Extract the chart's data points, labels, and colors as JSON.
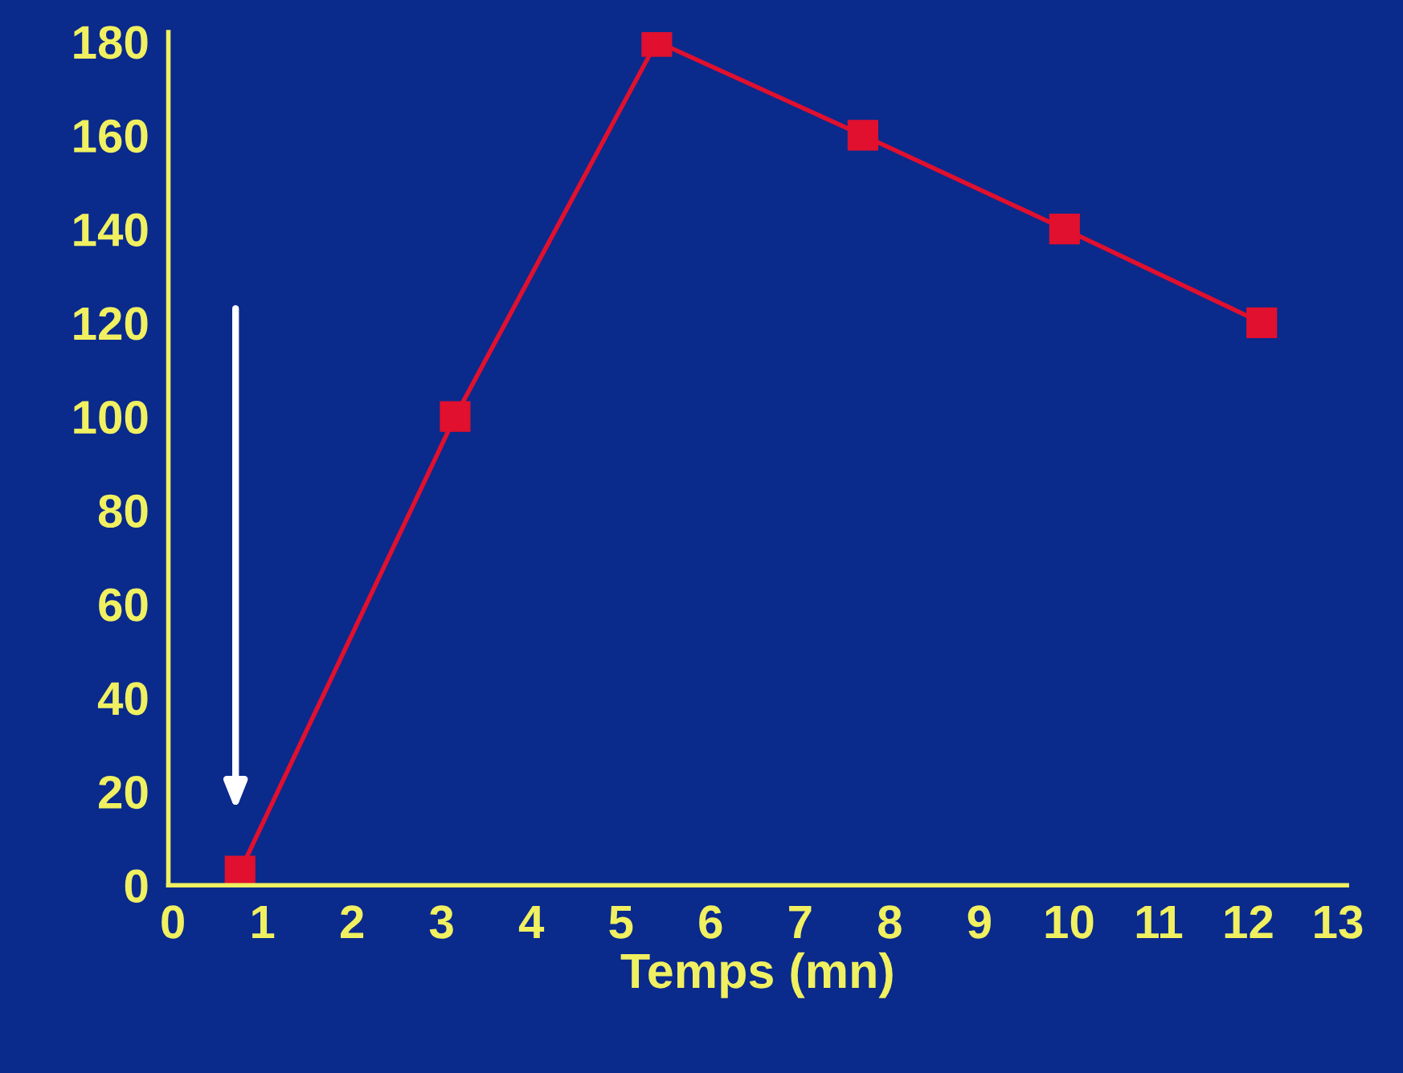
{
  "chart_data": {
    "type": "line",
    "xlabel": "Temps (mn)",
    "x": [
      0.75,
      3.15,
      5.4,
      7.7,
      9.95,
      12.15
    ],
    "series": [
      {
        "color": "#e0102e",
        "values": [
          3,
          100,
          180,
          160,
          140,
          120
        ]
      }
    ],
    "marker": "square",
    "line_style": "solid",
    "xlim": [
      -0.05,
      13.1
    ],
    "ylim": [
      0,
      182
    ],
    "xticks": [
      0,
      1,
      2,
      3,
      4,
      5,
      6,
      7,
      8,
      9,
      10,
      11,
      12,
      13
    ],
    "yticks": [
      0,
      20,
      40,
      60,
      80,
      100,
      120,
      140,
      160,
      180
    ],
    "grid": false,
    "legend": false
  }
}
